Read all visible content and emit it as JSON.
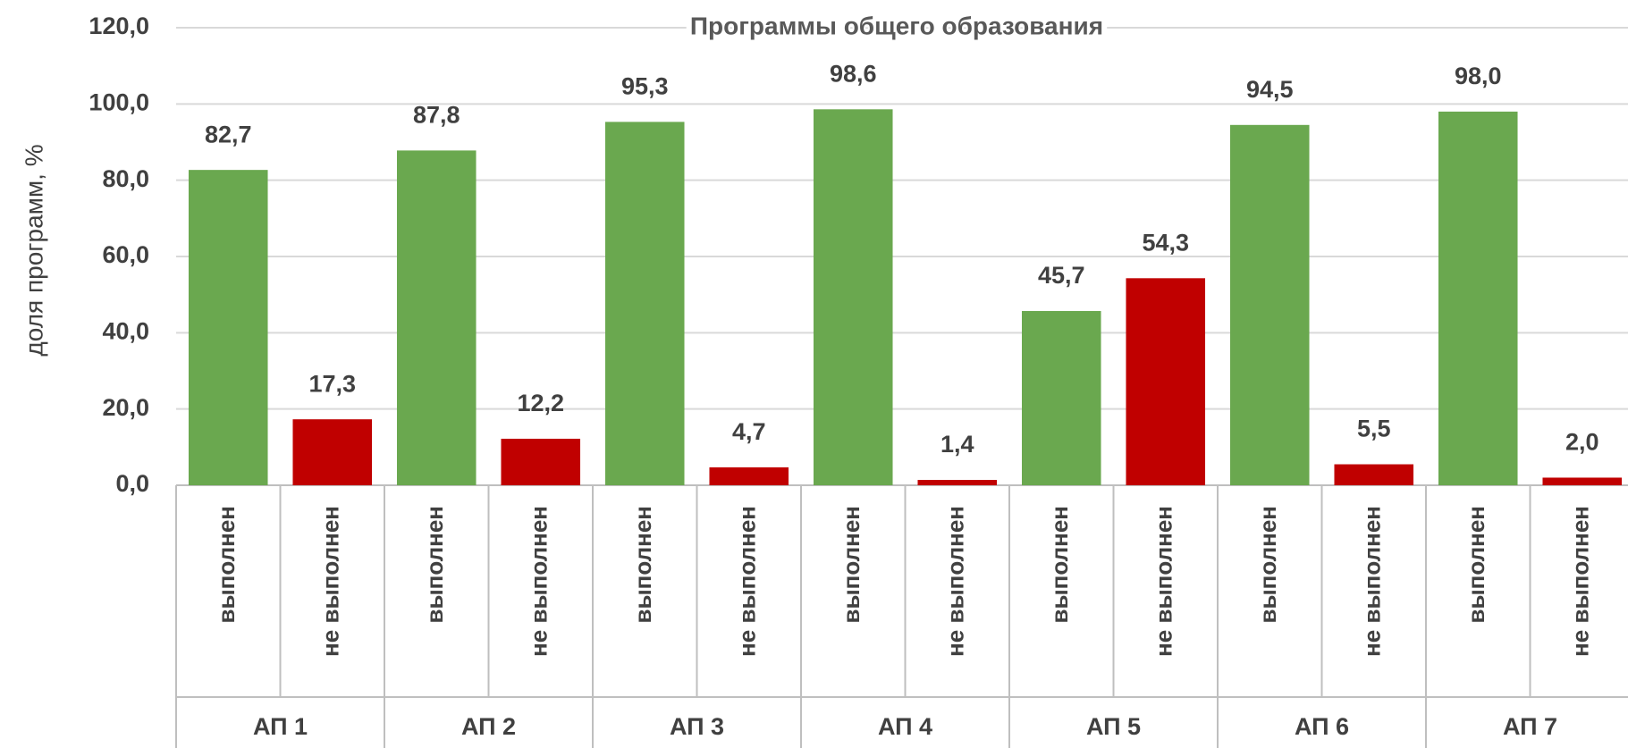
{
  "chart_data": {
    "type": "bar",
    "title": "Программы общего образования",
    "y_label": "доля программ, %",
    "categories": [
      "выполнен",
      "не выполнен",
      "выполнен",
      "не выполнен",
      "выполнен",
      "не выполнен",
      "выполнен",
      "не выполнен",
      "выполнен",
      "не выполнен",
      "выполнен",
      "не выполнен",
      "выполнен",
      "не выполнен"
    ],
    "groups": [
      "АП 1",
      "АП 2",
      "АП 3",
      "АП 4",
      "АП 5",
      "АП 6",
      "АП 7"
    ],
    "values": [
      82.7,
      17.3,
      87.8,
      12.2,
      95.3,
      4.7,
      98.6,
      1.4,
      45.7,
      54.3,
      94.5,
      5.5,
      98.0,
      2.0
    ],
    "value_labels": [
      "82,7",
      "17,3",
      "87,8",
      "12,2",
      "95,3",
      "4,7",
      "98,6",
      "1,4",
      "45,7",
      "54,3",
      "94,5",
      "5,5",
      "98,0",
      "2,0"
    ],
    "colors": [
      "#6aa84f",
      "#c00000"
    ],
    "ylim": [
      0,
      120
    ],
    "yticks": [
      {
        "value": 0,
        "label": "0,0"
      },
      {
        "value": 20,
        "label": "20,0"
      },
      {
        "value": 40,
        "label": "40,0"
      },
      {
        "value": 60,
        "label": "60,0"
      },
      {
        "value": 80,
        "label": "80,0"
      },
      {
        "value": 100,
        "label": "100,0"
      },
      {
        "value": 120,
        "label": "120,0"
      }
    ],
    "grid": true
  }
}
